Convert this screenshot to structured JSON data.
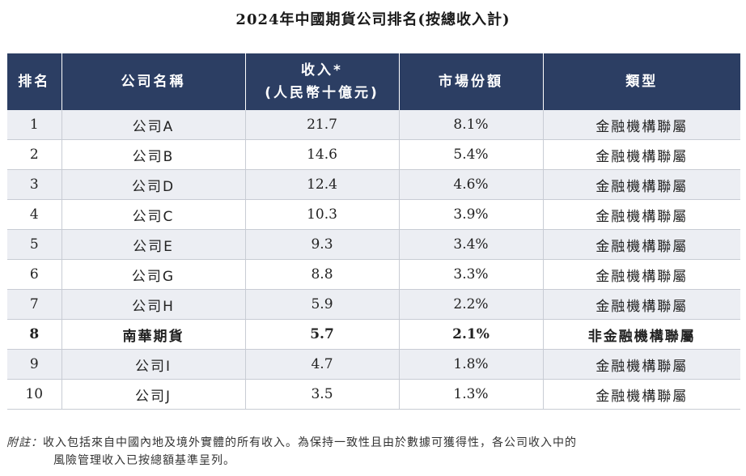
{
  "title": "2024年中國期貨公司排名(按總收入計)",
  "table": {
    "headers": {
      "rank": "排名",
      "company": "公司名稱",
      "revenue_line1": "收入*",
      "revenue_line2": "(人民幣十億元)",
      "market_share": "市場份額",
      "type": "類型"
    },
    "rows": [
      {
        "rank": "1",
        "company": "公司A",
        "revenue": "21.7",
        "share": "8.1%",
        "type": "金融機構聯屬"
      },
      {
        "rank": "2",
        "company": "公司B",
        "revenue": "14.6",
        "share": "5.4%",
        "type": "金融機構聯屬"
      },
      {
        "rank": "3",
        "company": "公司D",
        "revenue": "12.4",
        "share": "4.6%",
        "type": "金融機構聯屬"
      },
      {
        "rank": "4",
        "company": "公司C",
        "revenue": "10.3",
        "share": "3.9%",
        "type": "金融機構聯屬"
      },
      {
        "rank": "5",
        "company": "公司E",
        "revenue": "9.3",
        "share": "3.4%",
        "type": "金融機構聯屬"
      },
      {
        "rank": "6",
        "company": "公司G",
        "revenue": "8.8",
        "share": "3.3%",
        "type": "金融機構聯屬"
      },
      {
        "rank": "7",
        "company": "公司H",
        "revenue": "5.9",
        "share": "2.2%",
        "type": "金融機構聯屬"
      },
      {
        "rank": "8",
        "company": "南華期貨",
        "revenue": "5.7",
        "share": "2.1%",
        "type": "非金融機構聯屬"
      },
      {
        "rank": "9",
        "company": "公司I",
        "revenue": "4.7",
        "share": "1.8%",
        "type": "金融機構聯屬"
      },
      {
        "rank": "10",
        "company": "公司J",
        "revenue": "3.5",
        "share": "1.3%",
        "type": "金融機構聯屬"
      }
    ]
  },
  "footnote": {
    "label": "附註：",
    "line1": "收入包括來自中國內地及境外實體的所有收入。為保持一致性且由於數據可獲得性，各公司收入中的",
    "line2": "風險管理收入已按總額基準呈列。"
  },
  "colors": {
    "header_bg": "#2c3e63",
    "stripe_bg": "#eceef3"
  }
}
